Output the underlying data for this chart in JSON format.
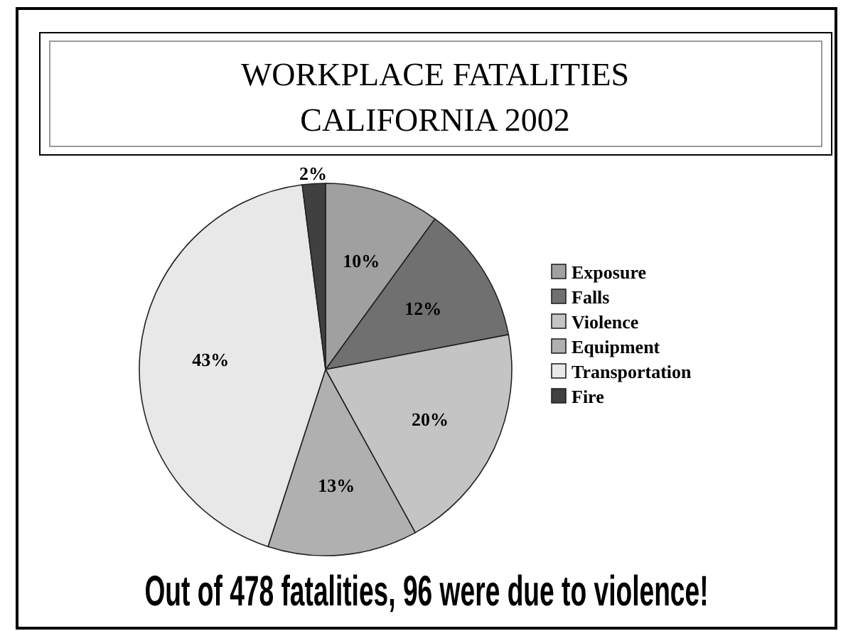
{
  "chart_data": {
    "type": "pie",
    "title": "WORKPLACE FATALITIES",
    "subtitle": "CALIFORNIA 2002",
    "categories": [
      "Exposure",
      "Falls",
      "Violence",
      "Equipment",
      "Transportation",
      "Fire"
    ],
    "values": [
      10,
      12,
      20,
      13,
      43,
      2
    ],
    "value_labels": [
      "10%",
      "12%",
      "20%",
      "13%",
      "43%",
      "2%"
    ],
    "colors": [
      "#a0a0a0",
      "#707070",
      "#c4c4c4",
      "#b0b0b0",
      "#e8e8e8",
      "#404040"
    ],
    "legend": "right",
    "annotations": [
      "Out of 478 fatalities, 96 were due to violence!"
    ]
  }
}
